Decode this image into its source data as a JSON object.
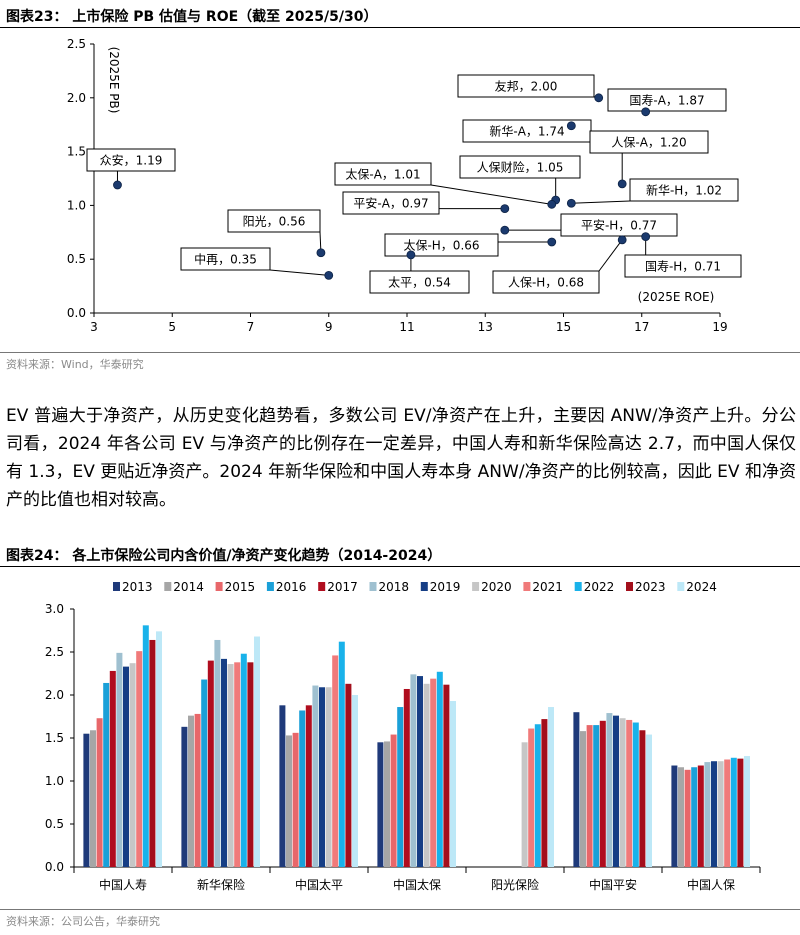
{
  "figure23": {
    "title": "图表23：  上市保险 PB 估值与 ROE（截至 2025/5/30）",
    "source": "资料来源：Wind，华泰研究"
  },
  "paragraph": "EV 普遍大于净资产，从历史变化趋势看，多数公司 EV/净资产在上升，主要因 ANW/净资产上升。分公司看，2024 年各公司 EV 与净资产的比例存在一定差异，中国人寿和新华保险高达 2.7，而中国人保仅有 1.3，EV 更贴近净资产。2024 年新华保险和中国人寿本身 ANW/净资产的比例较高，因此 EV 和净资产的比值也相对较高。",
  "figure24": {
    "title": "图表24：  各上市保险公司内含价值/净资产变化趋势（2014-2024）",
    "source": "资料来源：公司公告，华泰研究"
  },
  "chart_data": [
    {
      "type": "scatter",
      "title": "上市保险 PB 估值与 ROE（截至 2025/5/30）",
      "xlabel": "(2025E ROE)",
      "ylabel": "(2025E PB)",
      "xlim": [
        3,
        19
      ],
      "ylim": [
        0,
        2.5
      ],
      "xticks": [
        "3",
        "5",
        "7",
        "9",
        "11",
        "13",
        "15",
        "17",
        "19"
      ],
      "yticks": [
        "0.0",
        "0.5",
        "1.0",
        "1.5",
        "2.0",
        "2.5"
      ],
      "points": [
        {
          "label": "友邦，2.00",
          "x": 15.9,
          "y": 2.0
        },
        {
          "label": "国寿-A，1.87",
          "x": 17.1,
          "y": 1.87
        },
        {
          "label": "新华-A，1.74",
          "x": 15.2,
          "y": 1.74
        },
        {
          "label": "人保-A，1.20",
          "x": 16.5,
          "y": 1.2
        },
        {
          "label": "众安，1.19",
          "x": 3.6,
          "y": 1.19
        },
        {
          "label": "人保财险，1.05",
          "x": 14.8,
          "y": 1.05
        },
        {
          "label": "太保-A，1.01",
          "x": 14.7,
          "y": 1.01
        },
        {
          "label": "新华-H，1.02",
          "x": 15.2,
          "y": 1.02
        },
        {
          "label": "平安-A，0.97",
          "x": 13.5,
          "y": 0.97
        },
        {
          "label": "平安-H，0.77",
          "x": 13.5,
          "y": 0.77
        },
        {
          "label": "太保-H，0.66",
          "x": 14.7,
          "y": 0.66
        },
        {
          "label": "人保-H，0.68",
          "x": 16.5,
          "y": 0.68
        },
        {
          "label": "国寿-H，0.71",
          "x": 17.1,
          "y": 0.71
        },
        {
          "label": "阳光，0.56",
          "x": 8.8,
          "y": 0.56
        },
        {
          "label": "中再，0.35",
          "x": 9.0,
          "y": 0.35
        },
        {
          "label": "太平，0.54",
          "x": 11.1,
          "y": 0.54
        }
      ]
    },
    {
      "type": "bar",
      "title": "各上市保险公司内含价值/净资产变化趋势（2014-2024）",
      "ylim": [
        0,
        3.0
      ],
      "yticks": [
        "0.0",
        "0.5",
        "1.0",
        "1.5",
        "2.0",
        "2.5",
        "3.0"
      ],
      "categories": [
        "中国人寿",
        "新华保险",
        "中国太平",
        "中国太保",
        "阳光保险",
        "中国平安",
        "中国人保"
      ],
      "series": [
        {
          "name": "2013",
          "color": "#1f3a7a",
          "values": [
            1.55,
            1.63,
            1.88,
            1.45,
            null,
            1.8,
            1.18
          ]
        },
        {
          "name": "2014",
          "color": "#a6a6a6",
          "values": [
            1.59,
            1.76,
            1.53,
            1.46,
            null,
            1.58,
            1.16
          ]
        },
        {
          "name": "2015",
          "color": "#e8676a",
          "values": [
            1.73,
            1.78,
            1.56,
            1.54,
            null,
            1.65,
            1.13
          ]
        },
        {
          "name": "2016",
          "color": "#1aa0d8",
          "values": [
            2.14,
            2.18,
            1.82,
            1.86,
            null,
            1.65,
            1.16
          ]
        },
        {
          "name": "2017",
          "color": "#b00d1e",
          "values": [
            2.28,
            2.4,
            1.88,
            2.07,
            null,
            1.7,
            1.18
          ]
        },
        {
          "name": "2018",
          "color": "#9fc0d0",
          "values": [
            2.49,
            2.64,
            2.11,
            2.24,
            null,
            1.79,
            1.22
          ]
        },
        {
          "name": "2019",
          "color": "#163e85",
          "values": [
            2.33,
            2.42,
            2.09,
            2.22,
            null,
            1.76,
            1.23
          ]
        },
        {
          "name": "2020",
          "color": "#c6c6c6",
          "values": [
            2.37,
            2.36,
            2.09,
            2.13,
            1.45,
            1.73,
            1.23
          ]
        },
        {
          "name": "2021",
          "color": "#f07a7a",
          "values": [
            2.51,
            2.38,
            2.46,
            2.19,
            1.61,
            1.71,
            1.25
          ]
        },
        {
          "name": "2022",
          "color": "#19b2ea",
          "values": [
            2.81,
            2.48,
            2.62,
            2.27,
            1.66,
            1.68,
            1.27
          ]
        },
        {
          "name": "2023",
          "color": "#a30f1c",
          "values": [
            2.64,
            2.38,
            2.13,
            2.12,
            1.72,
            1.59,
            1.26
          ]
        },
        {
          "name": "2024",
          "color": "#bde8f7",
          "values": [
            2.74,
            2.68,
            2.0,
            1.93,
            1.86,
            1.54,
            1.29
          ]
        }
      ]
    }
  ]
}
